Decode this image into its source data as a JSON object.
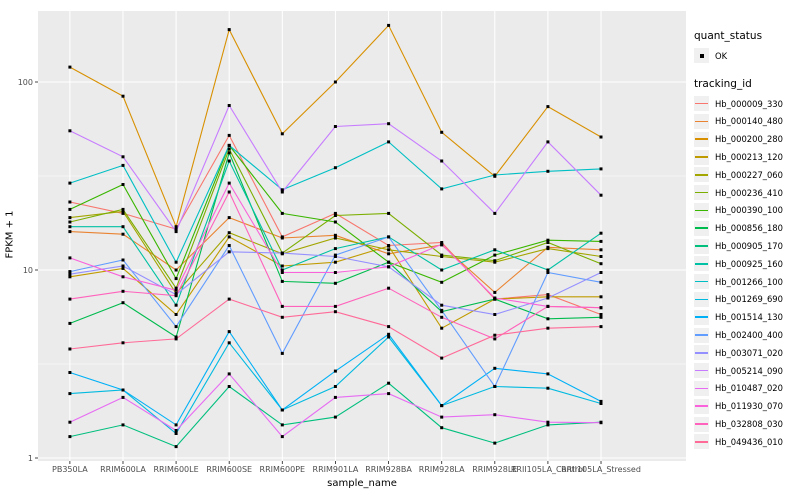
{
  "chart_data": {
    "type": "line",
    "title": "",
    "xlabel": "sample_name",
    "ylabel": "FPKM + 1",
    "yscale": "log10",
    "yticks": [
      1,
      10,
      100
    ],
    "y_minor_ticks": [
      3.162,
      31.62
    ],
    "ylim": [
      0.95,
      235
    ],
    "grid": true,
    "legend_position": "right",
    "categories": [
      "PB350LA",
      "RRIM600LA",
      "RRIM600LE",
      "RRIM600SE",
      "RRIM600PE",
      "RRIM901LA",
      "RRIM928BA",
      "RRIM928LA",
      "RRIM928LE",
      "RRII105LA_Control",
      "RRII105LA_Stressed"
    ],
    "series": [
      {
        "name": "Hb_000009_330",
        "color": "#F8766D",
        "values": [
          23,
          20,
          16.5,
          52,
          15,
          20,
          13.5,
          14,
          7,
          7.4,
          5.8
        ]
      },
      {
        "name": "Hb_000140_480",
        "color": "#EA8331",
        "values": [
          16,
          15.5,
          10,
          19,
          14.8,
          15.3,
          12.2,
          13.6,
          7.6,
          13.2,
          12.8
        ]
      },
      {
        "name": "Hb_000200_280",
        "color": "#D89000",
        "values": [
          120,
          84,
          17,
          190,
          53,
          100,
          200,
          54,
          31.5,
          74,
          51
        ]
      },
      {
        "name": "Hb_000213_120",
        "color": "#C09B00",
        "values": [
          9.2,
          10.2,
          5.8,
          15,
          10.5,
          11,
          13.4,
          4.9,
          7,
          7.2,
          7.2
        ]
      },
      {
        "name": "Hb_000227_060",
        "color": "#A3A500",
        "values": [
          19,
          20.5,
          7.5,
          15.8,
          12.2,
          14.8,
          12.8,
          11.8,
          11,
          13,
          11.8
        ]
      },
      {
        "name": "Hb_000236_410",
        "color": "#7CAE00",
        "values": [
          18,
          21,
          8,
          44,
          12.3,
          19.5,
          20,
          12,
          11.2,
          14,
          10.8
        ]
      },
      {
        "name": "Hb_000390_100",
        "color": "#39B600",
        "values": [
          21,
          28.5,
          9,
          46,
          20,
          18,
          11,
          8.6,
          12,
          14.4,
          14.2
        ]
      },
      {
        "name": "Hb_000856_180",
        "color": "#00BB4E",
        "values": [
          5.2,
          6.7,
          4.4,
          42,
          8.7,
          8.5,
          11,
          6,
          7,
          5.5,
          5.6
        ]
      },
      {
        "name": "Hb_000905_170",
        "color": "#00BF7D",
        "values": [
          1.3,
          1.5,
          1.15,
          2.4,
          1.5,
          1.65,
          2.5,
          1.45,
          1.2,
          1.5,
          1.55
        ]
      },
      {
        "name": "Hb_000925_160",
        "color": "#00C1A3",
        "values": [
          17,
          17,
          6.5,
          38,
          10,
          13,
          15,
          10,
          12.8,
          10,
          15.7
        ]
      },
      {
        "name": "Hb_001266_100",
        "color": "#00BFC4",
        "values": [
          29,
          36,
          11,
          46,
          26.7,
          35,
          48,
          27,
          32,
          33.5,
          34.5
        ]
      },
      {
        "name": "Hb_001269_690",
        "color": "#00BAE0",
        "values": [
          2.2,
          2.3,
          1.35,
          4.1,
          1.8,
          2.4,
          4.4,
          1.9,
          2.4,
          2.35,
          1.95
        ]
      },
      {
        "name": "Hb_001514_130",
        "color": "#00B0F6",
        "values": [
          2.85,
          2.3,
          1.5,
          4.7,
          1.8,
          2.9,
          4.55,
          1.9,
          3.0,
          2.8,
          2.0
        ]
      },
      {
        "name": "Hb_002400_400",
        "color": "#619CFF",
        "values": [
          9.8,
          11.3,
          5.0,
          13.5,
          3.6,
          12,
          15,
          6.1,
          2.4,
          9.7,
          8.6
        ]
      },
      {
        "name": "Hb_003071_020",
        "color": "#9590FF",
        "values": [
          9.5,
          10.5,
          7.4,
          12.5,
          12.3,
          11.8,
          10.4,
          6.5,
          5.8,
          7.1,
          9.7
        ]
      },
      {
        "name": "Hb_005214_090",
        "color": "#C77CFF",
        "values": [
          55,
          40,
          16,
          75,
          26,
          58,
          60,
          38,
          20,
          48,
          25
        ]
      },
      {
        "name": "Hb_010487_020",
        "color": "#E76BF3",
        "values": [
          1.55,
          2.1,
          1.4,
          2.8,
          1.3,
          2.1,
          2.2,
          1.65,
          1.7,
          1.55,
          1.54
        ]
      },
      {
        "name": "Hb_011930_070",
        "color": "#FA62DB",
        "values": [
          11.6,
          9.2,
          7.8,
          29,
          9.7,
          9.7,
          10.4,
          13.7,
          7.1,
          6.4,
          6.3
        ]
      },
      {
        "name": "Hb_032808_030",
        "color": "#FF62BC",
        "values": [
          7.0,
          7.7,
          7.3,
          26,
          6.4,
          6.4,
          8,
          5.6,
          4.3,
          6.4,
          6.3
        ]
      },
      {
        "name": "Hb_049436_010",
        "color": "#FF6A98",
        "values": [
          3.8,
          4.1,
          4.3,
          7,
          5.6,
          6,
          5,
          3.4,
          4.5,
          4.9,
          5.0
        ]
      }
    ],
    "legend": {
      "quant_status_title": "quant_status",
      "quant_status_items": [
        "OK"
      ],
      "tracking_id_title": "tracking_id"
    },
    "colors": {
      "panel_bg": "#EBEBEB",
      "grid": "#FFFFFF",
      "point": "#000000",
      "axis_text": "#4D4D4D",
      "tick_mark": "#333333",
      "legend_key_bg": "#F0F0F0",
      "background": "#FFFFFF"
    }
  }
}
